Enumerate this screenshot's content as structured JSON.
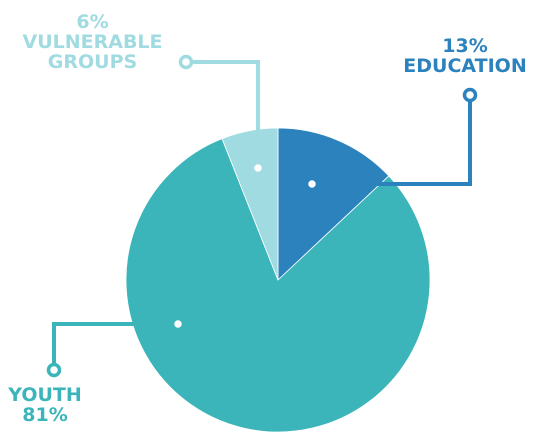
{
  "chart_data": {
    "type": "pie",
    "slices": [
      {
        "label_line1": "13%",
        "label_line2": "EDUCATION",
        "value": 13,
        "color": "#2b82bd"
      },
      {
        "label_line1": "YOUTH",
        "label_line2": "81%",
        "value": 81,
        "color": "#3bb5ba"
      },
      {
        "label_line1": "6%",
        "label_line2": "VULNERABLE",
        "label_line3": "GROUPS",
        "value": 6,
        "color": "#9fdbe1"
      }
    ]
  }
}
